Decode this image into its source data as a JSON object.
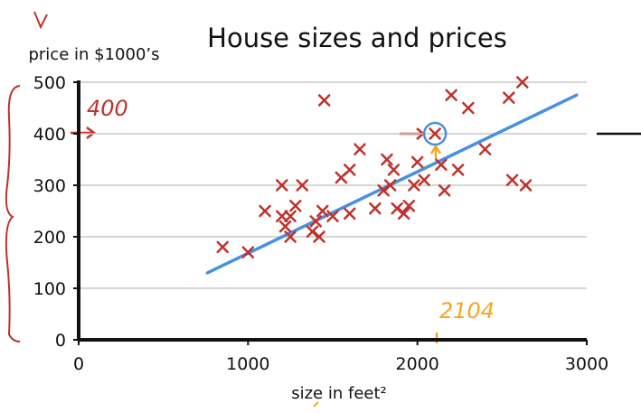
{
  "chart_data": {
    "type": "scatter",
    "title": "House sizes and prices",
    "xlabel": "size in feet²",
    "ylabel": "price in $1000’s",
    "xlim": [
      0,
      3000
    ],
    "ylim": [
      0,
      500
    ],
    "x_ticks": [
      "0",
      "1000",
      "2000",
      "3000"
    ],
    "y_ticks": [
      "0",
      "100",
      "200",
      "300",
      "400",
      "500"
    ],
    "grid": "horizontal",
    "series": [
      {
        "marker": "x",
        "color": "#c0312b",
        "points": [
          [
            850,
            180
          ],
          [
            1000,
            170
          ],
          [
            1100,
            250
          ],
          [
            1200,
            300
          ],
          [
            1200,
            240
          ],
          [
            1220,
            220
          ],
          [
            1250,
            200
          ],
          [
            1250,
            240
          ],
          [
            1280,
            260
          ],
          [
            1320,
            300
          ],
          [
            1380,
            210
          ],
          [
            1400,
            230
          ],
          [
            1420,
            200
          ],
          [
            1440,
            250
          ],
          [
            1450,
            465
          ],
          [
            1500,
            240
          ],
          [
            1550,
            315
          ],
          [
            1600,
            330
          ],
          [
            1600,
            245
          ],
          [
            1660,
            370
          ],
          [
            1750,
            255
          ],
          [
            1800,
            290
          ],
          [
            1820,
            350
          ],
          [
            1840,
            300
          ],
          [
            1860,
            330
          ],
          [
            1880,
            255
          ],
          [
            1920,
            245
          ],
          [
            1950,
            260
          ],
          [
            1980,
            300
          ],
          [
            2000,
            345
          ],
          [
            2040,
            310
          ],
          [
            2104,
            400
          ],
          [
            2140,
            340
          ],
          [
            2160,
            290
          ],
          [
            2200,
            475
          ],
          [
            2240,
            330
          ],
          [
            2300,
            450
          ],
          [
            2400,
            370
          ],
          [
            2540,
            470
          ],
          [
            2560,
            310
          ],
          [
            2620,
            500
          ],
          [
            2640,
            300
          ]
        ]
      },
      {
        "type": "line",
        "color": "#4a90e2",
        "points": [
          [
            760,
            130
          ],
          [
            2940,
            475
          ]
        ]
      }
    ],
    "annotations": {
      "red_label": "400",
      "orange_label": "2104",
      "highlight_point": [
        2104,
        400
      ]
    },
    "colors": {
      "marker": "#c0312b",
      "fit_line": "#4a90e2",
      "annotation_orange": "#f5a623",
      "grid": "#c8c8c8"
    }
  }
}
